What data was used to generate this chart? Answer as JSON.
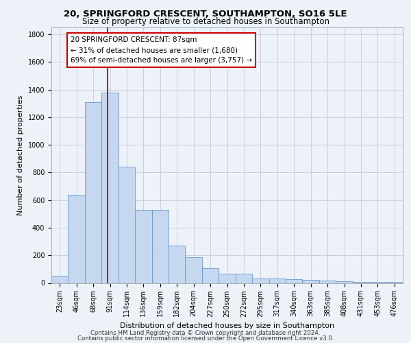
{
  "title1": "20, SPRINGFORD CRESCENT, SOUTHAMPTON, SO16 5LE",
  "title2": "Size of property relative to detached houses in Southampton",
  "xlabel": "Distribution of detached houses by size in Southampton",
  "ylabel": "Number of detached properties",
  "categories": [
    "23sqm",
    "46sqm",
    "68sqm",
    "91sqm",
    "114sqm",
    "136sqm",
    "159sqm",
    "182sqm",
    "204sqm",
    "227sqm",
    "250sqm",
    "272sqm",
    "295sqm",
    "317sqm",
    "340sqm",
    "363sqm",
    "385sqm",
    "408sqm",
    "431sqm",
    "453sqm",
    "476sqm"
  ],
  "values": [
    50,
    640,
    1310,
    1380,
    840,
    530,
    530,
    270,
    185,
    105,
    65,
    65,
    30,
    30,
    25,
    20,
    15,
    10,
    8,
    5,
    5
  ],
  "bar_color": "#c5d8f0",
  "bar_edge_color": "#6699cc",
  "grid_color": "#c8cfe0",
  "annotation_line1": "20 SPRINGFORD CRESCENT: 87sqm",
  "annotation_line2": "← 31% of detached houses are smaller (1,680)",
  "annotation_line3": "69% of semi-detached houses are larger (3,757) →",
  "annotation_box_facecolor": "#ffffff",
  "annotation_box_edgecolor": "#cc0000",
  "property_line_x": 2.87,
  "ylim": [
    0,
    1850
  ],
  "yticks": [
    0,
    200,
    400,
    600,
    800,
    1000,
    1200,
    1400,
    1600,
    1800
  ],
  "footer1": "Contains HM Land Registry data © Crown copyright and database right 2024.",
  "footer2": "Contains public sector information licensed under the Open Government Licence v3.0.",
  "background_color": "#edf2f9",
  "title1_fontsize": 9.5,
  "title2_fontsize": 8.5,
  "ylabel_fontsize": 8,
  "xlabel_fontsize": 8,
  "tick_fontsize": 7,
  "annotation_fontsize": 7.5,
  "footer_fontsize": 6.2
}
